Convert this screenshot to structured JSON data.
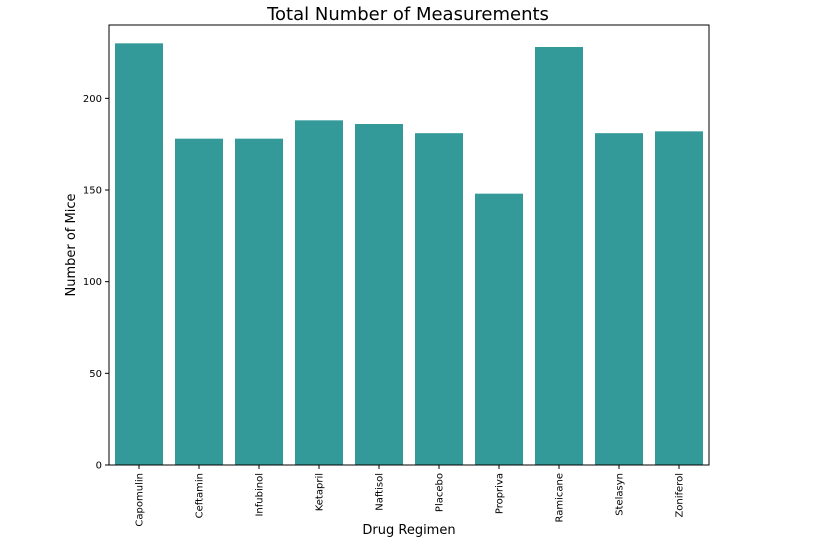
{
  "colors": {
    "bar": "#339999",
    "frame": "#000000"
  },
  "chart_data": {
    "type": "bar",
    "title": "Total Number of Measurements",
    "xlabel": "Drug Regimen",
    "ylabel": "Number of Mice",
    "categories": [
      "Capomulin",
      "Ceftamin",
      "Infubinol",
      "Ketapril",
      "Naftisol",
      "Placebo",
      "Propriva",
      "Ramicane",
      "Stelasyn",
      "Zoniferol"
    ],
    "values": [
      230,
      178,
      178,
      188,
      186,
      181,
      148,
      228,
      181,
      182
    ],
    "yticks": [
      0,
      50,
      100,
      150,
      200
    ],
    "ylim": [
      0,
      240
    ],
    "grid": false,
    "legend": "none"
  }
}
